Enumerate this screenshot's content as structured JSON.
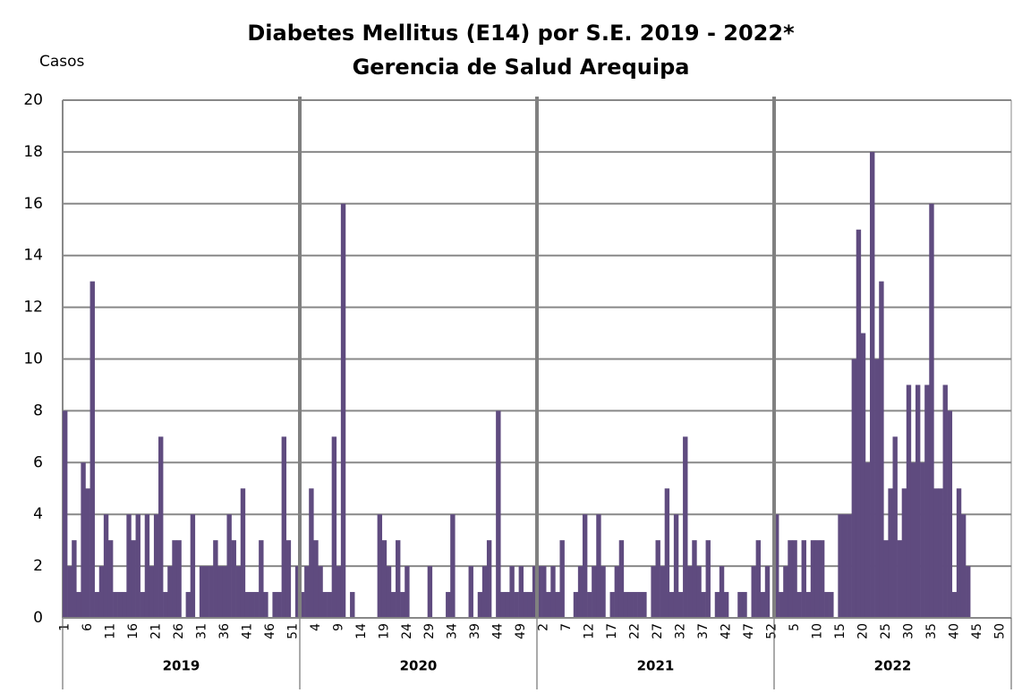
{
  "chart_data": {
    "type": "bar",
    "title": "Diabetes Mellitus (E14) por S.E. 2019 - 2022*",
    "subtitle": "Gerencia de Salud Arequipa",
    "y_label": "Casos",
    "color": "#5f4b7f",
    "ylim": [
      0,
      20
    ],
    "yticks": [
      0,
      2,
      4,
      6,
      8,
      10,
      12,
      14,
      16,
      18,
      20
    ],
    "grid": true,
    "groups": [
      {
        "label": "2019",
        "categories": [
          "1",
          null,
          null,
          null,
          null,
          "6",
          null,
          null,
          null,
          null,
          "11",
          null,
          null,
          null,
          null,
          "16",
          null,
          null,
          null,
          null,
          "21",
          null,
          null,
          null,
          null,
          "26",
          null,
          null,
          null,
          null,
          "31",
          null,
          null,
          null,
          null,
          "36",
          null,
          null,
          null,
          null,
          "41",
          null,
          null,
          null,
          null,
          "46",
          null,
          null,
          null,
          null,
          "51",
          null
        ],
        "values": [
          8,
          2,
          3,
          1,
          6,
          5,
          13,
          1,
          2,
          4,
          3,
          1,
          1,
          1,
          4,
          3,
          4,
          1,
          4,
          2,
          4,
          7,
          1,
          2,
          3,
          3,
          0,
          1,
          4,
          0,
          2,
          2,
          2,
          3,
          2,
          2,
          4,
          3,
          2,
          5,
          1,
          1,
          1,
          3,
          1,
          0,
          1,
          1,
          7,
          3,
          0,
          2
        ]
      },
      {
        "label": "2020",
        "categories": [
          null,
          null,
          null,
          "4",
          null,
          null,
          null,
          null,
          "9",
          null,
          null,
          null,
          null,
          "14",
          null,
          null,
          null,
          null,
          "19",
          null,
          null,
          null,
          null,
          "24",
          null,
          null,
          null,
          null,
          "29",
          null,
          null,
          null,
          null,
          "34",
          null,
          null,
          null,
          null,
          "39",
          null,
          null,
          null,
          null,
          "44",
          null,
          null,
          null,
          null,
          "49",
          null,
          null,
          null
        ],
        "values": [
          1,
          2,
          5,
          3,
          2,
          1,
          1,
          7,
          2,
          16,
          0,
          1,
          0,
          0,
          0,
          0,
          0,
          4,
          3,
          2,
          1,
          3,
          1,
          2,
          0,
          0,
          0,
          0,
          2,
          0,
          0,
          0,
          1,
          4,
          0,
          0,
          0,
          2,
          0,
          1,
          2,
          3,
          0,
          8,
          1,
          1,
          2,
          1,
          2,
          1,
          1,
          2
        ]
      },
      {
        "label": "2021",
        "categories": [
          null,
          "2",
          null,
          null,
          null,
          null,
          "7",
          null,
          null,
          null,
          null,
          "12",
          null,
          null,
          null,
          null,
          "17",
          null,
          null,
          null,
          null,
          "22",
          null,
          null,
          null,
          null,
          "27",
          null,
          null,
          null,
          null,
          "32",
          null,
          null,
          null,
          null,
          "37",
          null,
          null,
          null,
          null,
          "42",
          null,
          null,
          null,
          null,
          "47",
          null,
          null,
          null,
          null,
          "52"
        ],
        "values": [
          2,
          2,
          1,
          2,
          1,
          3,
          0,
          0,
          1,
          2,
          4,
          1,
          2,
          4,
          2,
          0,
          1,
          2,
          3,
          1,
          1,
          1,
          1,
          1,
          0,
          2,
          3,
          2,
          5,
          1,
          4,
          1,
          7,
          2,
          3,
          2,
          1,
          3,
          0,
          1,
          2,
          1,
          0,
          0,
          1,
          1,
          0,
          2,
          3,
          1,
          2,
          0
        ]
      },
      {
        "label": "2022",
        "categories": [
          null,
          null,
          null,
          null,
          "5",
          null,
          null,
          null,
          null,
          "10",
          null,
          null,
          null,
          null,
          "15",
          null,
          null,
          null,
          null,
          "20",
          null,
          null,
          null,
          null,
          "25",
          null,
          null,
          null,
          null,
          "30",
          null,
          null,
          null,
          null,
          "35",
          null,
          null,
          null,
          null,
          "40",
          null,
          null,
          null,
          null,
          "45",
          null,
          null,
          null,
          null,
          "50",
          null,
          null
        ],
        "values": [
          4,
          1,
          2,
          3,
          3,
          1,
          3,
          1,
          3,
          3,
          3,
          1,
          1,
          0,
          4,
          4,
          4,
          10,
          15,
          11,
          6,
          18,
          10,
          13,
          3,
          5,
          7,
          3,
          5,
          9,
          6,
          9,
          6,
          9,
          16,
          5,
          5,
          9,
          8,
          1,
          5,
          4,
          2,
          0,
          null,
          null,
          null,
          null,
          null,
          null,
          null,
          null
        ]
      }
    ]
  }
}
